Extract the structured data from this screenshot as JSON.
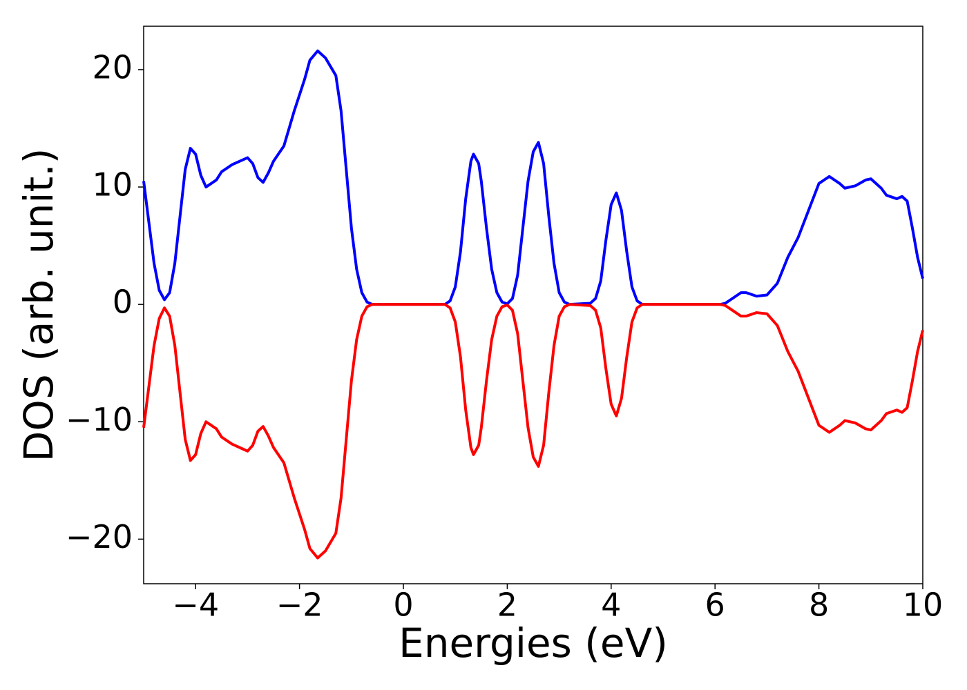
{
  "chart_data": {
    "type": "line",
    "xlabel": "Energies (eV)",
    "ylabel": "DOS (arb. unit.)",
    "x": [
      -5,
      -4.9,
      -4.8,
      -4.7,
      -4.6,
      -4.5,
      -4.4,
      -4.3,
      -4.2,
      -4.1,
      -4,
      -3.9,
      -3.8,
      -3.6,
      -3.5,
      -3.3,
      -3.1,
      -3,
      -2.9,
      -2.8,
      -2.7,
      -2.6,
      -2.5,
      -2.3,
      -2.1,
      -1.9,
      -1.8,
      -1.65,
      -1.5,
      -1.3,
      -1.2,
      -1.1,
      -1,
      -0.9,
      -0.8,
      -0.7,
      -0.6,
      -0.4,
      0.8,
      0.9,
      1,
      1.1,
      1.2,
      1.3,
      1.35,
      1.45,
      1.5,
      1.6,
      1.7,
      1.8,
      1.9,
      2,
      2.1,
      2.2,
      2.3,
      2.4,
      2.5,
      2.6,
      2.7,
      2.8,
      2.9,
      3,
      3.1,
      3.2,
      3.6,
      3.7,
      3.8,
      3.9,
      4,
      4.1,
      4.2,
      4.3,
      4.4,
      4.5,
      4.6,
      6.1,
      6.2,
      6.3,
      6.5,
      6.6,
      6.8,
      7,
      7.2,
      7.4,
      7.6,
      7.8,
      8,
      8.2,
      8.4,
      8.5,
      8.7,
      8.9,
      9,
      9.2,
      9.3,
      9.5,
      9.6,
      9.7,
      9.8,
      9.9,
      10
    ],
    "series": [
      {
        "color": "#0000ff",
        "values": [
          10.5,
          7,
          3.5,
          1.2,
          0.4,
          1,
          3.5,
          7.5,
          11.5,
          13.3,
          12.8,
          11,
          10,
          10.6,
          11.3,
          11.9,
          12.3,
          12.5,
          12,
          10.8,
          10.4,
          11.2,
          12.2,
          13.5,
          16.5,
          19.2,
          20.8,
          21.6,
          21,
          19.5,
          16.5,
          11.5,
          6.5,
          3,
          1,
          0.2,
          0,
          0,
          0,
          0.3,
          1.5,
          4.5,
          9,
          12.2,
          12.8,
          12,
          10.5,
          6.5,
          3,
          1,
          0.2,
          0.05,
          0.5,
          2.5,
          6.5,
          10.5,
          13,
          13.8,
          12,
          7.5,
          3.5,
          1,
          0.2,
          0,
          0.1,
          0.5,
          2,
          5.5,
          8.5,
          9.5,
          8,
          4.5,
          1.5,
          0.3,
          0,
          0,
          0.1,
          0.4,
          1,
          1,
          0.7,
          0.8,
          1.8,
          4,
          5.7,
          8,
          10.3,
          10.9,
          10.3,
          9.9,
          10.1,
          10.6,
          10.7,
          9.9,
          9.3,
          9,
          9.2,
          8.8,
          6.5,
          4,
          2.2
        ]
      },
      {
        "color": "#ff0000",
        "values": [
          -10.5,
          -7,
          -3.5,
          -1.2,
          -0.3,
          -1,
          -3.5,
          -7.5,
          -11.5,
          -13.3,
          -12.8,
          -11,
          -10,
          -10.6,
          -11.3,
          -11.9,
          -12.3,
          -12.5,
          -12,
          -10.8,
          -10.4,
          -11.2,
          -12.2,
          -13.5,
          -16.5,
          -19.2,
          -20.8,
          -21.6,
          -21,
          -19.5,
          -16.5,
          -11.5,
          -6.5,
          -3,
          -1,
          -0.2,
          0,
          0,
          0,
          -0.3,
          -1.5,
          -4.5,
          -9,
          -12.2,
          -12.8,
          -12,
          -10.5,
          -6.5,
          -3,
          -1,
          -0.2,
          -0.05,
          -0.5,
          -2.5,
          -6.5,
          -10.5,
          -13,
          -13.8,
          -12,
          -7.5,
          -3.5,
          -1,
          -0.2,
          0,
          -0.1,
          -0.5,
          -2,
          -5.5,
          -8.5,
          -9.5,
          -8,
          -4.5,
          -1.5,
          -0.3,
          0,
          0,
          -0.1,
          -0.4,
          -1,
          -1,
          -0.7,
          -0.8,
          -1.8,
          -4,
          -5.7,
          -8,
          -10.3,
          -10.9,
          -10.3,
          -9.9,
          -10.1,
          -10.6,
          -10.7,
          -9.9,
          -9.3,
          -9,
          -9.2,
          -8.8,
          -6.5,
          -4,
          -2.2
        ]
      }
    ],
    "xlim": [
      -5,
      10
    ],
    "xticks": [
      {
        "value": -4,
        "label": "−4"
      },
      {
        "value": -2,
        "label": "−2"
      },
      0,
      2,
      4,
      6,
      8,
      10
    ],
    "ylim": [
      -23.8,
      23.7
    ],
    "yticks": [
      {
        "value": -20,
        "label": "−20"
      },
      {
        "value": -10,
        "label": "−10"
      },
      0,
      10,
      20
    ]
  }
}
